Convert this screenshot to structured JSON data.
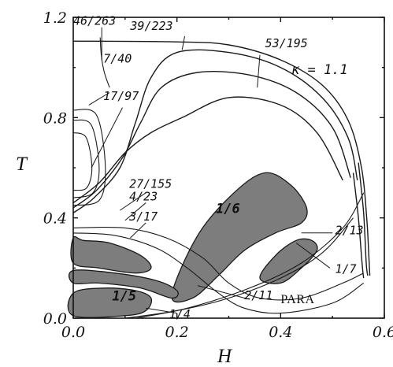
{
  "chart_data": {
    "type": "line",
    "title": "",
    "xlabel": "H",
    "ylabel": "T",
    "xlim": [
      0.0,
      0.6
    ],
    "ylim": [
      0.0,
      1.2
    ],
    "grid": false,
    "x_ticks": [
      "0.0",
      "0.2",
      "0.4",
      "0.6"
    ],
    "y_ticks": [
      "0.0",
      "0.4",
      "0.8",
      "1.2"
    ],
    "x_tick_values": [
      0.0,
      0.2,
      0.4,
      0.6
    ],
    "y_tick_values": [
      0.0,
      0.4,
      0.8,
      1.2
    ],
    "parameter_label": "κ = 1.1",
    "phase_labels": [
      {
        "text": "46/263",
        "x": 0.0,
        "y": 1.17
      },
      {
        "text": "39/223",
        "x": 0.11,
        "y": 1.15
      },
      {
        "text": "53/195",
        "x": 0.37,
        "y": 1.08
      },
      {
        "text": "7/40",
        "x": 0.058,
        "y": 1.02
      },
      {
        "text": "17/97",
        "x": 0.058,
        "y": 0.87
      },
      {
        "text": "27/155",
        "x": 0.108,
        "y": 0.52
      },
      {
        "text": "4/23",
        "x": 0.108,
        "y": 0.47
      },
      {
        "text": "3/17",
        "x": 0.108,
        "y": 0.39
      },
      {
        "text": "2/13",
        "x": 0.505,
        "y": 0.335
      },
      {
        "text": "1/7",
        "x": 0.505,
        "y": 0.18
      },
      {
        "text": "2/11",
        "x": 0.33,
        "y": 0.075
      },
      {
        "text": "1/4",
        "x": 0.185,
        "y": 0.0
      },
      {
        "text": "PARA",
        "x": 0.4,
        "y": 0.06
      }
    ],
    "shaded_labels": [
      {
        "text": "1/6",
        "x": 0.275,
        "y": 0.42
      },
      {
        "text": "1/5",
        "x": 0.075,
        "y": 0.07
      }
    ],
    "boundary_lines": [
      {
        "name": "outer",
        "points": [
          [
            0.0,
            1.105
          ],
          [
            0.2,
            1.102
          ],
          [
            0.3,
            1.09
          ],
          [
            0.4,
            1.03
          ],
          [
            0.48,
            0.93
          ],
          [
            0.53,
            0.79
          ],
          [
            0.556,
            0.6
          ],
          [
            0.566,
            0.4
          ],
          [
            0.57,
            0.25
          ],
          [
            0.572,
            0.17
          ]
        ]
      },
      {
        "name": "right-inner-1",
        "points": [
          [
            0.55,
            0.62
          ],
          [
            0.56,
            0.42
          ],
          [
            0.565,
            0.22
          ],
          [
            0.568,
            0.17
          ]
        ]
      },
      {
        "name": "right-inner-2",
        "points": [
          [
            0.54,
            0.58
          ],
          [
            0.55,
            0.4
          ],
          [
            0.557,
            0.22
          ],
          [
            0.56,
            0.16
          ]
        ]
      },
      {
        "name": "loop-1",
        "points": [
          [
            0.0,
            0.42
          ],
          [
            0.04,
            0.48
          ],
          [
            0.09,
            0.6
          ],
          [
            0.12,
            0.78
          ],
          [
            0.15,
            0.96
          ],
          [
            0.2,
            1.06
          ],
          [
            0.3,
            1.06
          ],
          [
            0.4,
            1.0
          ],
          [
            0.48,
            0.88
          ],
          [
            0.53,
            0.72
          ],
          [
            0.548,
            0.55
          ]
        ]
      },
      {
        "name": "loop-2",
        "points": [
          [
            0.0,
            0.44
          ],
          [
            0.045,
            0.51
          ],
          [
            0.095,
            0.64
          ],
          [
            0.13,
            0.78
          ],
          [
            0.17,
            0.92
          ],
          [
            0.24,
            0.98
          ],
          [
            0.34,
            0.97
          ],
          [
            0.43,
            0.9
          ],
          [
            0.5,
            0.76
          ],
          [
            0.535,
            0.56
          ]
        ]
      },
      {
        "name": "loop-3",
        "points": [
          [
            0.0,
            0.46
          ],
          [
            0.05,
            0.54
          ],
          [
            0.1,
            0.66
          ],
          [
            0.15,
            0.74
          ],
          [
            0.21,
            0.8
          ],
          [
            0.3,
            0.88
          ],
          [
            0.4,
            0.85
          ],
          [
            0.47,
            0.74
          ],
          [
            0.52,
            0.55
          ]
        ]
      },
      {
        "name": "left-oval-1",
        "points": [
          [
            0.0,
            0.83
          ],
          [
            0.045,
            0.81
          ],
          [
            0.062,
            0.6
          ],
          [
            0.05,
            0.47
          ],
          [
            0.0,
            0.45
          ]
        ]
      },
      {
        "name": "left-oval-2",
        "points": [
          [
            0.0,
            0.79
          ],
          [
            0.035,
            0.77
          ],
          [
            0.05,
            0.6
          ],
          [
            0.038,
            0.5
          ],
          [
            0.0,
            0.48
          ]
        ]
      },
      {
        "name": "left-oval-3",
        "points": [
          [
            0.0,
            0.74
          ],
          [
            0.025,
            0.72
          ],
          [
            0.036,
            0.6
          ],
          [
            0.026,
            0.52
          ],
          [
            0.0,
            0.51
          ]
        ]
      }
    ],
    "shaded_regions": [
      {
        "label": "1/6",
        "points": [
          [
            0.19,
            0.09
          ],
          [
            0.24,
            0.33
          ],
          [
            0.31,
            0.5
          ],
          [
            0.37,
            0.58
          ],
          [
            0.42,
            0.53
          ],
          [
            0.45,
            0.44
          ],
          [
            0.44,
            0.38
          ],
          [
            0.39,
            0.34
          ],
          [
            0.33,
            0.27
          ],
          [
            0.28,
            0.17
          ],
          [
            0.23,
            0.08
          ]
        ]
      },
      {
        "label": "1/7",
        "points": [
          [
            0.36,
            0.16
          ],
          [
            0.39,
            0.25
          ],
          [
            0.43,
            0.31
          ],
          [
            0.46,
            0.31
          ],
          [
            0.47,
            0.27
          ],
          [
            0.44,
            0.2
          ],
          [
            0.4,
            0.14
          ]
        ]
      },
      {
        "label": "1/5",
        "points": [
          [
            0.0,
            0.1
          ],
          [
            0.06,
            0.12
          ],
          [
            0.12,
            0.11
          ],
          [
            0.15,
            0.08
          ],
          [
            0.14,
            0.03
          ],
          [
            0.1,
            0.01
          ],
          [
            0.0,
            0.01
          ]
        ]
      },
      {
        "label": "upper-left-band",
        "points": [
          [
            0.0,
            0.32
          ],
          [
            0.02,
            0.31
          ],
          [
            0.07,
            0.3
          ],
          [
            0.13,
            0.25
          ],
          [
            0.15,
            0.2
          ],
          [
            0.12,
            0.18
          ],
          [
            0.05,
            0.2
          ],
          [
            0.0,
            0.22
          ]
        ]
      },
      {
        "label": "2/11-band",
        "points": [
          [
            0.0,
            0.19
          ],
          [
            0.08,
            0.18
          ],
          [
            0.16,
            0.15
          ],
          [
            0.2,
            0.11
          ],
          [
            0.19,
            0.08
          ],
          [
            0.13,
            0.12
          ],
          [
            0.05,
            0.14
          ],
          [
            0.0,
            0.14
          ]
        ]
      }
    ]
  }
}
